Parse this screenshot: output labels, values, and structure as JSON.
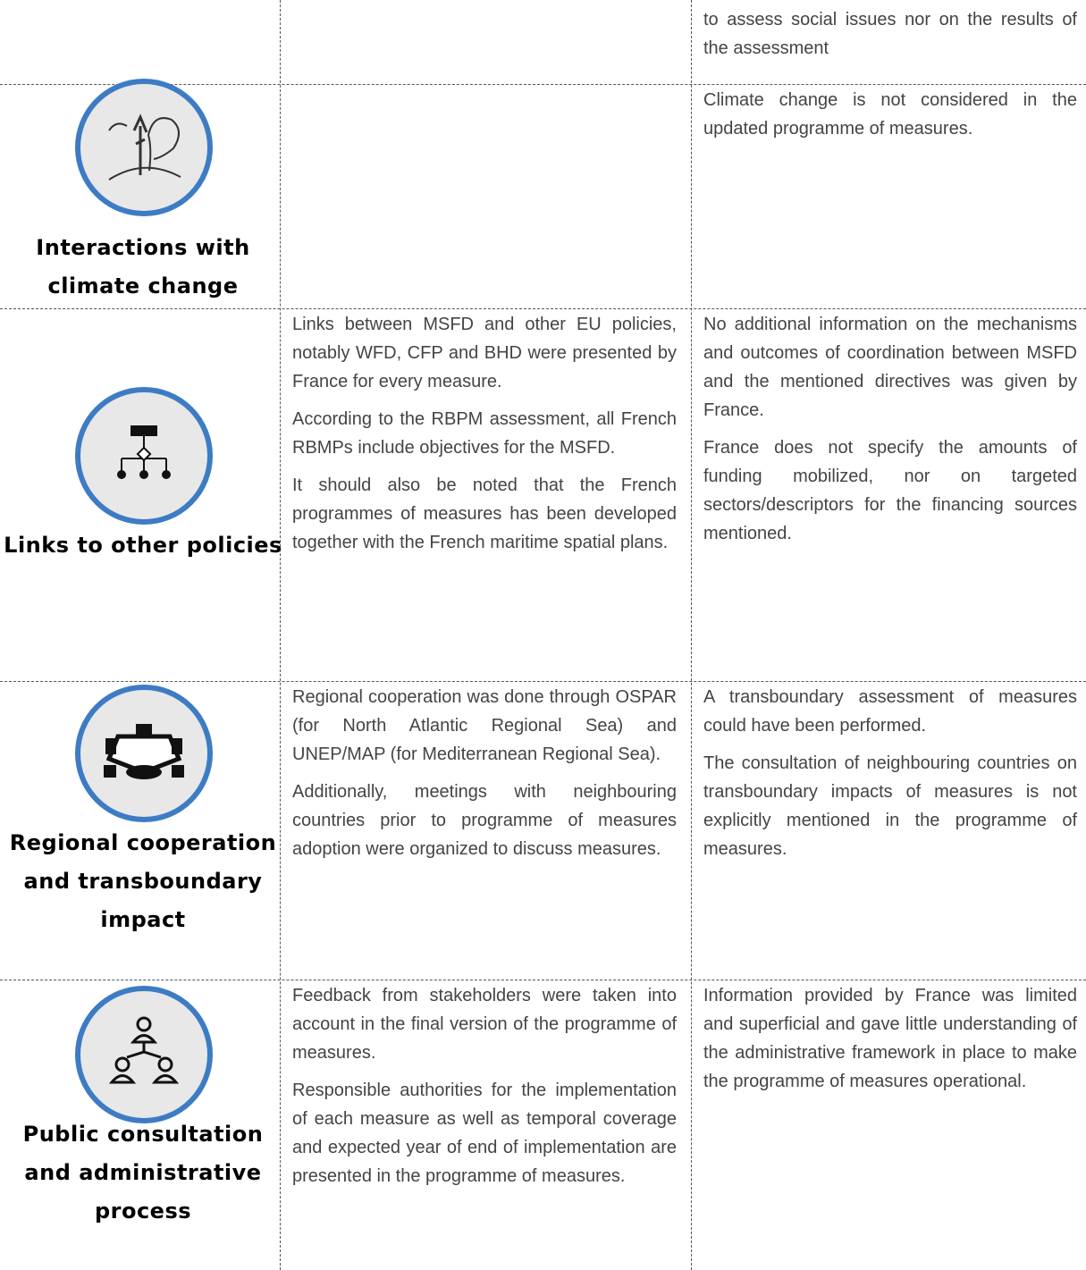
{
  "table": {
    "rows": [
      {
        "assessment": [
          "to assess social issues nor on the results of the assessment"
        ]
      },
      {
        "topic": "Interactions with climate change",
        "assessment": [
          "Climate change is not considered in the updated programme of measures."
        ]
      },
      {
        "topic": "Links to other policies",
        "description": [
          "Links between MSFD and other EU policies, notably WFD, CFP and BHD were presented by France for every measure.",
          "According to the RBPM assessment, all French RBMPs include objectives for the MSFD.",
          "It should also be noted that the French programmes of measures has been developed together with the French maritime spatial plans."
        ],
        "assessment": [
          "No additional information on the mechanisms and outcomes of coordination between MSFD and the mentioned directives was given by France.",
          "France does not specify the amounts of funding mobilized, nor on targeted sectors/descriptors for the financing sources mentioned."
        ]
      },
      {
        "topic": "Regional cooperation and transboundary impact",
        "description": [
          "Regional cooperation was done through OSPAR (for North Atlantic Regional Sea) and UNEP/MAP (for Mediterranean Regional Sea).",
          "Additionally, meetings with neighbouring countries prior to programme of measures adoption were organized to discuss measures."
        ],
        "assessment": [
          "A transboundary assessment of measures could have been performed.",
          "The consultation of neighbouring countries on transboundary impacts of measures is not explicitly mentioned in the programme of measures."
        ]
      },
      {
        "topic": "Public consultation and administrative process",
        "description": [
          "Feedback from stakeholders were taken into account in the final version of the programme of measures.",
          "Responsible authorities for the implementation of each measure as well as temporal coverage and expected year of end of implementation are presented in the programme of measures."
        ],
        "assessment": [
          "Information provided by France was limited and superficial and gave little understanding of the administrative framework in place to make the programme of measures operational."
        ]
      }
    ]
  }
}
